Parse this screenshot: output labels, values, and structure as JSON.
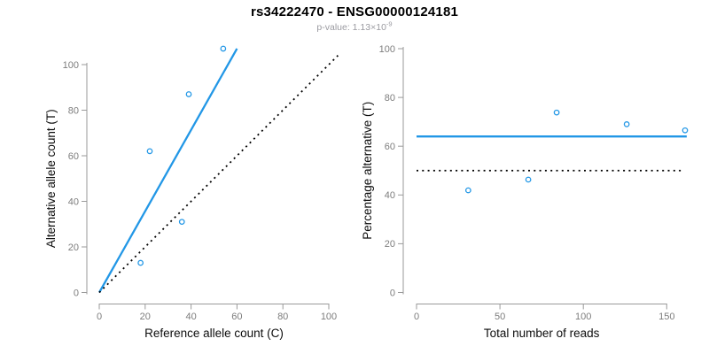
{
  "colors": {
    "accent_blue": "#2297E6",
    "dotted_black": "#000000",
    "axis_line": "#9a9a9a",
    "tick_text": "#7d7d7d",
    "axis_title_text": "#0d0d0d",
    "title_text": "#000000",
    "subtitle_text": "#9b9ba1",
    "background": "#ffffff"
  },
  "chart_data": {
    "figure_title": "rs34222470 - ENSG00000124181",
    "subtitle_prefix": "p-value: 1.13×10",
    "subtitle_exponent": "-9",
    "plots": [
      {
        "type": "scatter",
        "xlabel": "Reference allele count (C)",
        "ylabel": "Alternative allele count (T)",
        "xlim": [
          0,
          104
        ],
        "ylim": [
          0,
          107
        ],
        "grid": false,
        "xticks": [
          0,
          20,
          40,
          60,
          80,
          100
        ],
        "yticks": [
          0,
          20,
          40,
          60,
          80,
          100
        ],
        "points": [
          [
            18,
            13
          ],
          [
            22,
            62
          ],
          [
            36,
            31
          ],
          [
            39,
            87
          ],
          [
            54,
            107
          ]
        ],
        "lines": [
          {
            "name": "fit-line",
            "x1": 0,
            "y1": 0,
            "x2": 60,
            "y2": 107,
            "style": "solid",
            "color": "blue"
          },
          {
            "name": "identity-line",
            "x1": 0,
            "y1": 0,
            "x2": 104,
            "y2": 104,
            "style": "dotted",
            "color": "black"
          }
        ]
      },
      {
        "type": "scatter",
        "xlabel": "Total number of reads",
        "ylabel": "Percentage alternative (T)",
        "xlim": [
          0,
          162
        ],
        "ylim": [
          0,
          100
        ],
        "grid": false,
        "xticks": [
          0,
          50,
          100,
          150
        ],
        "yticks": [
          0,
          20,
          40,
          60,
          80,
          100
        ],
        "points": [
          [
            31,
            41.9
          ],
          [
            67,
            46.3
          ],
          [
            84,
            73.8
          ],
          [
            126,
            69
          ],
          [
            161,
            66.5
          ]
        ],
        "lines": [
          {
            "name": "mean-percentage-line",
            "x1": 0,
            "y1": 64,
            "x2": 162,
            "y2": 64,
            "style": "solid",
            "color": "blue"
          },
          {
            "name": "fifty-percent-line",
            "x1": 0,
            "y1": 50,
            "x2": 160,
            "y2": 50,
            "style": "dotted",
            "color": "black"
          }
        ]
      }
    ]
  }
}
